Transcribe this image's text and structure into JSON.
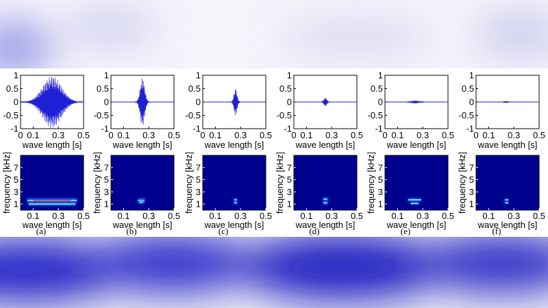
{
  "colors": {
    "waveform": "#1f1fd6",
    "spectrogram_bg": "#00008f",
    "band_outer": "#1d6bff",
    "band_core": "#9ff3d8",
    "band_hot": "#ff3b22",
    "backdrop_blur": "#3b3bd8"
  },
  "chart_data": [
    {
      "panel": "(a)",
      "waveform": {
        "type": "line",
        "xlabel": "wave length [s]",
        "xlim": [
          0,
          0.5
        ],
        "ylim": [
          -1,
          1
        ],
        "xticks": [
          "0",
          "0.1",
          "0.3",
          "0.5"
        ],
        "yticks": [
          "1",
          "0.5",
          "0",
          "-0.5",
          "-1"
        ],
        "envelope": {
          "kind": "gaussian",
          "center": 0.25,
          "width": 0.075,
          "amplitude": 1.0
        }
      },
      "spectrogram": {
        "type": "heatmap",
        "xlabel": "wave length [s]",
        "ylabel": "frequency [kHz]",
        "xlim": [
          0,
          0.5
        ],
        "ylim": [
          0,
          9
        ],
        "xticks": [
          "0.1",
          "0.3",
          "0.5"
        ],
        "yticks": [
          "7",
          "5",
          "3",
          "1"
        ],
        "bands": [
          {
            "t_start": 0.05,
            "t_end": 0.45,
            "freq": 1.6,
            "intensity": "high"
          },
          {
            "t_start": 0.06,
            "t_end": 0.44,
            "freq": 1.0,
            "intensity": "medium"
          }
        ]
      }
    },
    {
      "panel": "(b)",
      "waveform": {
        "type": "line",
        "xlabel": "wave length [s]",
        "xlim": [
          0,
          0.5
        ],
        "ylim": [
          -1,
          1
        ],
        "xticks": [
          "0",
          "0.1",
          "0.3",
          "0.5"
        ],
        "yticks": [
          "1",
          "0.5",
          "0",
          "-0.5",
          "-1"
        ],
        "envelope": {
          "kind": "burst",
          "center": 0.25,
          "width": 0.018,
          "amplitude": 0.95
        }
      },
      "spectrogram": {
        "type": "heatmap",
        "xlabel": "wave length [s]",
        "ylabel": "frequency [kHz]",
        "xlim": [
          0,
          0.5
        ],
        "ylim": [
          0,
          9
        ],
        "xticks": [
          "0.1",
          "0.3",
          "0.5"
        ],
        "yticks": [
          "7",
          "5",
          "3",
          "1"
        ],
        "bands": [
          {
            "t_start": 0.21,
            "t_end": 0.27,
            "freq": 1.6,
            "intensity": "high"
          },
          {
            "t_start": 0.22,
            "t_end": 0.26,
            "freq": 1.3,
            "intensity": "medium"
          }
        ]
      }
    },
    {
      "panel": "(c)",
      "waveform": {
        "type": "line",
        "xlabel": "wave length [s]",
        "xlim": [
          0,
          0.5
        ],
        "ylim": [
          -1,
          1
        ],
        "xticks": [
          "0",
          "0.1",
          "0.3",
          "0.5"
        ],
        "yticks": [
          "1",
          "0.5",
          "0",
          "-0.5",
          "-1"
        ],
        "envelope": {
          "kind": "burst",
          "center": 0.26,
          "width": 0.012,
          "amplitude": 0.55
        }
      },
      "spectrogram": {
        "type": "heatmap",
        "xlabel": "wave length [s]",
        "ylabel": "frequency [kHz]",
        "xlim": [
          0,
          0.5
        ],
        "ylim": [
          0,
          9
        ],
        "xticks": [
          "0.1",
          "0.3",
          "0.5"
        ],
        "yticks": [
          "7",
          "5",
          "3",
          "1"
        ],
        "bands": [
          {
            "t_start": 0.245,
            "t_end": 0.275,
            "freq": 1.7,
            "intensity": "medium"
          },
          {
            "t_start": 0.245,
            "t_end": 0.275,
            "freq": 1.2,
            "intensity": "medium"
          }
        ]
      }
    },
    {
      "panel": "(d)",
      "waveform": {
        "type": "line",
        "xlabel": "wave length [s]",
        "xlim": [
          0,
          0.5
        ],
        "ylim": [
          -1,
          1
        ],
        "xticks": [
          "0",
          "0.1",
          "0.3",
          "0.5"
        ],
        "yticks": [
          "1",
          "0.5",
          "0",
          "-0.5",
          "-1"
        ],
        "envelope": {
          "kind": "burst",
          "center": 0.25,
          "width": 0.012,
          "amplitude": 0.18
        }
      },
      "spectrogram": {
        "type": "heatmap",
        "xlabel": "wave length [s]",
        "ylabel": "frequency [kHz]",
        "xlim": [
          0,
          0.5
        ],
        "ylim": [
          0,
          9
        ],
        "xticks": [
          "0.1",
          "0.3",
          "0.5"
        ],
        "yticks": [
          "7",
          "5",
          "3",
          "1"
        ],
        "bands": [
          {
            "t_start": 0.23,
            "t_end": 0.27,
            "freq": 1.8,
            "intensity": "medium"
          },
          {
            "t_start": 0.23,
            "t_end": 0.27,
            "freq": 1.2,
            "intensity": "medium"
          }
        ]
      }
    },
    {
      "panel": "(e)",
      "waveform": {
        "type": "line",
        "xlabel": "wave length [s]",
        "xlim": [
          0,
          0.5
        ],
        "ylim": [
          -1,
          1
        ],
        "xticks": [
          "0",
          "0.1",
          "0.3",
          "0.5"
        ],
        "yticks": [
          "1",
          "0.5",
          "0",
          "-0.5",
          "-1"
        ],
        "envelope": {
          "kind": "burst",
          "center": 0.24,
          "width": 0.03,
          "amplitude": 0.06
        }
      },
      "spectrogram": {
        "type": "heatmap",
        "xlabel": "wave length [s]",
        "ylabel": "frequency [kHz]",
        "xlim": [
          0,
          0.5
        ],
        "ylim": [
          0,
          9
        ],
        "xticks": [
          "0.1",
          "0.3",
          "0.5"
        ],
        "yticks": [
          "7",
          "5",
          "3",
          "1"
        ],
        "bands": [
          {
            "t_start": 0.18,
            "t_end": 0.29,
            "freq": 1.7,
            "intensity": "medium"
          },
          {
            "t_start": 0.2,
            "t_end": 0.27,
            "freq": 1.1,
            "intensity": "low"
          }
        ]
      }
    },
    {
      "panel": "(f)",
      "waveform": {
        "type": "line",
        "xlabel": "wave length [s]",
        "xlim": [
          0,
          0.5
        ],
        "ylim": [
          -1,
          1
        ],
        "xticks": [
          "0",
          "0.1",
          "0.3",
          "0.5"
        ],
        "yticks": [
          "1",
          "0.5",
          "0",
          "-0.5",
          "-1"
        ],
        "envelope": {
          "kind": "burst",
          "center": 0.24,
          "width": 0.012,
          "amplitude": 0.04
        }
      },
      "spectrogram": {
        "type": "heatmap",
        "xlabel": "wave length [s]",
        "ylabel": "frequency [kHz]",
        "xlim": [
          0,
          0.5
        ],
        "ylim": [
          0,
          9
        ],
        "xticks": [
          "0.1",
          "0.3",
          "0.5"
        ],
        "yticks": [
          "7",
          "5",
          "3",
          "1"
        ],
        "bands": [
          {
            "t_start": 0.225,
            "t_end": 0.26,
            "freq": 1.7,
            "intensity": "low"
          },
          {
            "t_start": 0.225,
            "t_end": 0.26,
            "freq": 1.2,
            "intensity": "low"
          }
        ]
      }
    }
  ]
}
